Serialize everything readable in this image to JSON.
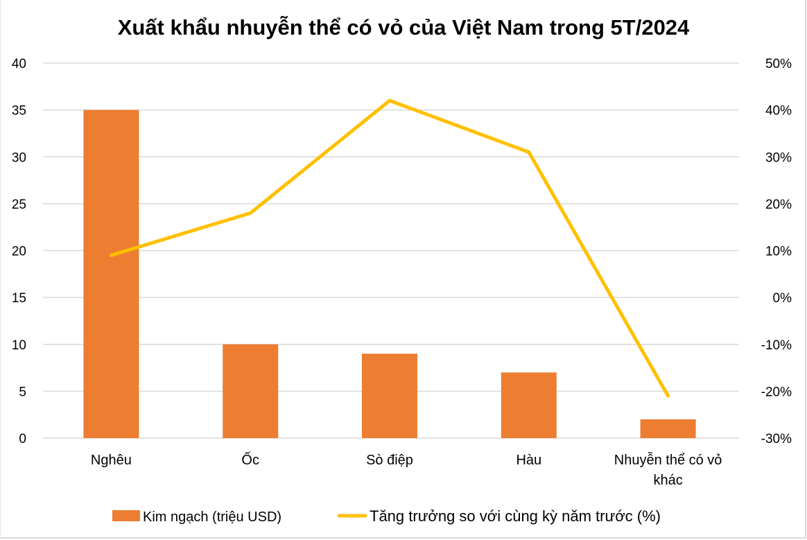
{
  "chart_data": {
    "type": "bar+line",
    "title": "Xuất khẩu nhuyễn thể có vỏ của Việt Nam trong 5T/2024",
    "categories": [
      "Nghêu",
      "Ốc",
      "Sò điệp",
      "Hàu",
      "Nhuyễn thể có vỏ khác"
    ],
    "category_lines": [
      [
        "Nghêu"
      ],
      [
        "Ốc"
      ],
      [
        "Sò điệp"
      ],
      [
        "Hàu"
      ],
      [
        "Nhuyễn thể có vỏ",
        "khác"
      ]
    ],
    "series": [
      {
        "name": "Kim ngạch (triệu USD)",
        "type": "bar",
        "axis": "left",
        "color": "#ED7D31",
        "values": [
          35,
          10,
          9,
          7,
          2
        ]
      },
      {
        "name": "Tăng trưởng so với cùng kỳ năm trước (%)",
        "type": "line",
        "axis": "right",
        "color": "#FFC000",
        "values": [
          9,
          18,
          42,
          31,
          -21
        ]
      }
    ],
    "left_axis": {
      "min": 0,
      "max": 40,
      "step": 5,
      "ticks": [
        "0",
        "5",
        "10",
        "15",
        "20",
        "25",
        "30",
        "35",
        "40"
      ]
    },
    "right_axis": {
      "min": -30,
      "max": 50,
      "step": 10,
      "ticks": [
        "-30%",
        "-20%",
        "-10%",
        "0%",
        "10%",
        "20%",
        "30%",
        "40%",
        "50%"
      ]
    },
    "grid": true,
    "legend_position": "bottom",
    "xlabel": "",
    "ylabel": ""
  },
  "legend": {
    "bar_label": "Kim ngạch (triệu USD)",
    "line_label": "Tăng trưởng so với cùng kỳ năm trước (%)"
  },
  "colors": {
    "bar": "#ED7D31",
    "line": "#FFC000",
    "grid": "#D9D9D9"
  }
}
